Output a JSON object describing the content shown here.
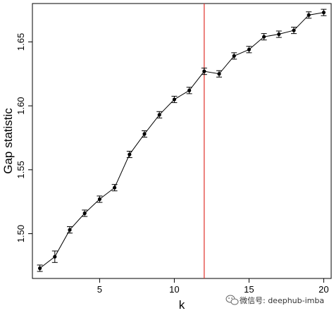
{
  "chart_data": {
    "type": "line",
    "title": "",
    "xlabel": "k",
    "ylabel": "Gap statistic",
    "xlim": [
      0.5,
      20.5
    ],
    "ylim": [
      1.465,
      1.68
    ],
    "x_ticks": [
      5,
      10,
      15,
      20
    ],
    "y_ticks": [
      1.5,
      1.55,
      1.6,
      1.65
    ],
    "y_tick_labels": [
      "1.50",
      "1.55",
      "1.60",
      "1.65"
    ],
    "grid": false,
    "legend": "none",
    "series": [
      {
        "x": [
          1,
          2,
          3,
          4,
          5,
          6,
          7,
          8,
          9,
          10,
          11,
          12,
          13,
          14,
          15,
          16,
          17,
          18,
          19,
          20
        ],
        "values": [
          1.473,
          1.482,
          1.503,
          1.516,
          1.527,
          1.536,
          1.562,
          1.578,
          1.593,
          1.605,
          1.612,
          1.627,
          1.625,
          1.639,
          1.644,
          1.654,
          1.656,
          1.659,
          1.671,
          1.673
        ],
        "errors": [
          0.0025,
          0.0045,
          0.0025,
          0.0025,
          0.0025,
          0.0025,
          0.0025,
          0.0025,
          0.0025,
          0.0025,
          0.0025,
          0.0025,
          0.0025,
          0.0025,
          0.0025,
          0.0025,
          0.0025,
          0.0025,
          0.0025,
          0.0025
        ],
        "color": "#000000"
      }
    ],
    "reference_line": {
      "x": 12,
      "color": "#e0302a"
    }
  },
  "watermark": {
    "text": "微信号: deephub-imba",
    "icon": "wechat-icon"
  }
}
